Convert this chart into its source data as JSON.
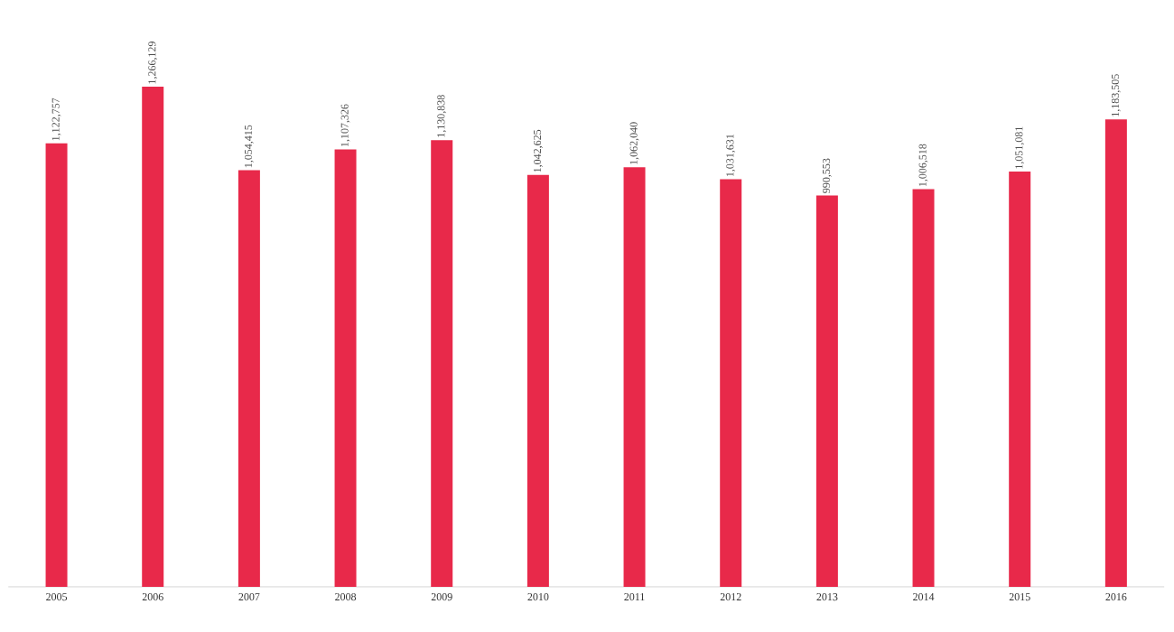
{
  "chart_data": {
    "type": "bar",
    "categories": [
      "2005",
      "2006",
      "2007",
      "2008",
      "2009",
      "2010",
      "2011",
      "2012",
      "2013",
      "2014",
      "2015",
      "2016"
    ],
    "values": [
      1122757,
      1266129,
      1054415,
      1107326,
      1130838,
      1042625,
      1062040,
      1031631,
      990553,
      1006518,
      1051081,
      1183505
    ],
    "value_labels": [
      "1,122,757",
      "1,266,129",
      "1,054,415",
      "1,107,326",
      "1,130,838",
      "1,042,625",
      "1,062,040",
      "1,031,631",
      "990,553",
      "1,006,518",
      "1,051,081",
      "1,183,505"
    ],
    "color": "#e8294a"
  }
}
